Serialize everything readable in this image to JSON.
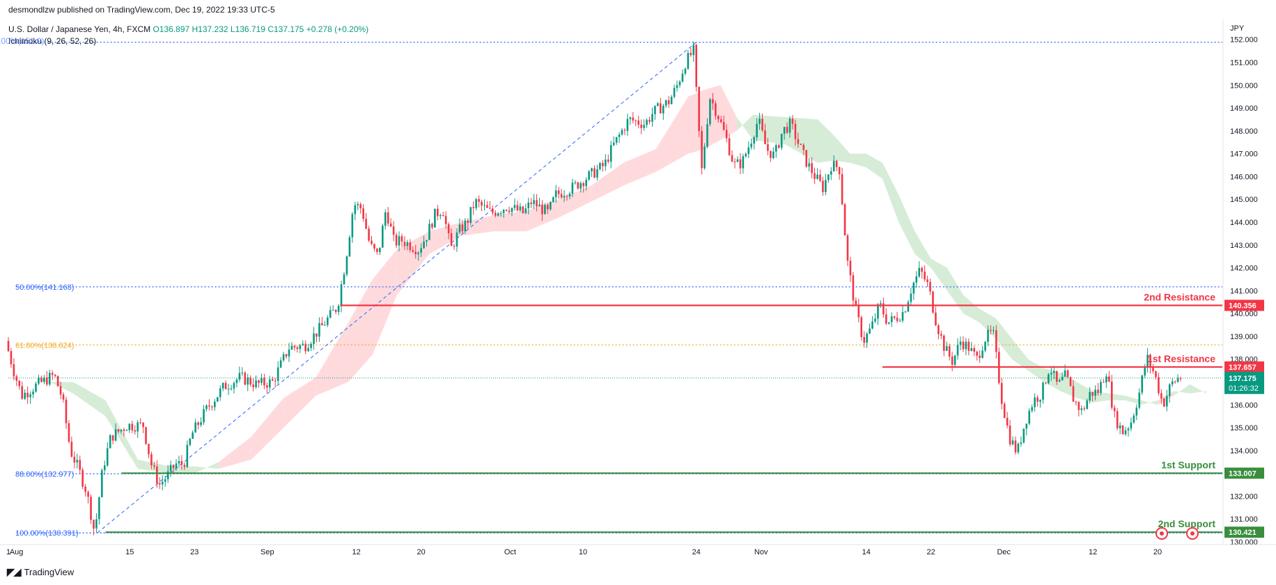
{
  "header": {
    "publish": "desmondlzw published on TradingView.com, Dec 19, 2022 19:33 UTC-5",
    "symbol": "U.S. Dollar / Japanese Yen, 4h, FXCM",
    "open": "O136.897",
    "high": "H137.232",
    "low": "L136.719",
    "close": "C137.175",
    "change": "+0.278 (+0.20%)",
    "indicator": "Ichimoku (9, 26, 52, 26)",
    "fib0": "0.00%(151.9)"
  },
  "brand": {
    "name": "TradingView"
  },
  "colors": {
    "up": "#089981",
    "down": "#f23645",
    "cloud_up": "#c8e6c9",
    "cloud_down": "#ffcdd2",
    "resistance": "#f23645",
    "support": "#388e3c",
    "fib_blue": "#2962ff",
    "fib_orange": "#f5a623"
  },
  "chart_data": {
    "type": "candlestick",
    "symbol": "USDJPY",
    "timeframe": "4h",
    "currency_label": "JPY",
    "ylim": [
      130.0,
      152.3
    ],
    "y_ticks": [
      "152.000",
      "151.000",
      "150.000",
      "149.000",
      "148.000",
      "147.000",
      "146.000",
      "145.000",
      "144.000",
      "143.000",
      "142.000",
      "141.000",
      "140.000",
      "139.000",
      "138.000",
      "137.000",
      "136.000",
      "135.000",
      "134.000",
      "133.000",
      "132.000",
      "131.000",
      "130.000"
    ],
    "x_ticks": [
      {
        "label": "1",
        "day": 0
      },
      {
        "label": "Aug",
        "day": 1
      },
      {
        "label": "15",
        "day": 15
      },
      {
        "label": "23",
        "day": 23
      },
      {
        "label": "Sep",
        "day": 32
      },
      {
        "label": "12",
        "day": 43
      },
      {
        "label": "20",
        "day": 51
      },
      {
        "label": "Oct",
        "day": 62
      },
      {
        "label": "10",
        "day": 71
      },
      {
        "label": "24",
        "day": 85
      },
      {
        "label": "Nov",
        "day": 93
      },
      {
        "label": "14",
        "day": 106
      },
      {
        "label": "22",
        "day": 114
      },
      {
        "label": "Dec",
        "day": 123
      },
      {
        "label": "12",
        "day": 134
      },
      {
        "label": "20",
        "day": 142
      }
    ],
    "date_range_days": [
      0,
      150
    ],
    "price_path": [
      [
        0,
        138.8
      ],
      [
        1,
        137.5
      ],
      [
        2,
        136.4
      ],
      [
        4,
        136.9
      ],
      [
        6,
        137.3
      ],
      [
        7,
        136.3
      ],
      [
        8,
        134.0
      ],
      [
        9,
        133.2
      ],
      [
        10,
        132.2
      ],
      [
        11,
        130.4
      ],
      [
        12,
        133.2
      ],
      [
        13,
        134.6
      ],
      [
        15,
        135.1
      ],
      [
        17,
        135.1
      ],
      [
        18,
        133.4
      ],
      [
        19,
        132.5
      ],
      [
        20,
        132.9
      ],
      [
        21,
        133.4
      ],
      [
        22,
        133.4
      ],
      [
        23,
        134.7
      ],
      [
        25,
        135.9
      ],
      [
        27,
        136.8
      ],
      [
        29,
        137.2
      ],
      [
        31,
        136.9
      ],
      [
        33,
        137.0
      ],
      [
        35,
        138.5
      ],
      [
        37,
        138.6
      ],
      [
        39,
        139.4
      ],
      [
        41,
        140.3
      ],
      [
        42,
        142.3
      ],
      [
        43,
        144.8
      ],
      [
        44,
        144.6
      ],
      [
        45,
        143.0
      ],
      [
        46,
        142.5
      ],
      [
        47,
        144.6
      ],
      [
        48,
        143.1
      ],
      [
        49,
        143.2
      ],
      [
        50,
        143.0
      ],
      [
        51,
        142.8
      ],
      [
        52,
        143.4
      ],
      [
        53,
        144.3
      ],
      [
        54,
        144.6
      ],
      [
        55,
        142.8
      ],
      [
        56,
        143.6
      ],
      [
        57,
        144.0
      ],
      [
        58,
        144.9
      ],
      [
        60,
        144.4
      ],
      [
        62,
        144.7
      ],
      [
        64,
        144.4
      ],
      [
        65,
        144.9
      ],
      [
        67,
        144.4
      ],
      [
        68,
        145.2
      ],
      [
        70,
        145.5
      ],
      [
        72,
        146.0
      ],
      [
        74,
        146.5
      ],
      [
        75,
        147.3
      ],
      [
        77,
        148.5
      ],
      [
        79,
        148.3
      ],
      [
        80,
        148.8
      ],
      [
        82,
        149.3
      ],
      [
        83,
        150.0
      ],
      [
        84,
        151.0
      ],
      [
        85,
        151.5
      ],
      [
        86,
        146.2
      ],
      [
        87,
        149.5
      ],
      [
        88,
        148.7
      ],
      [
        89,
        147.7
      ],
      [
        90,
        146.5
      ],
      [
        91,
        146.6
      ],
      [
        92,
        147.5
      ],
      [
        93,
        148.5
      ],
      [
        94,
        147.2
      ],
      [
        95,
        146.9
      ],
      [
        96,
        148.0
      ],
      [
        97,
        148.3
      ],
      [
        98,
        147.4
      ],
      [
        99,
        146.6
      ],
      [
        100,
        146.0
      ],
      [
        101,
        145.5
      ],
      [
        102,
        146.5
      ],
      [
        103,
        146.4
      ],
      [
        104,
        142.3
      ],
      [
        105,
        140.2
      ],
      [
        106,
        138.8
      ],
      [
        107,
        139.4
      ],
      [
        108,
        140.4
      ],
      [
        109,
        139.6
      ],
      [
        110,
        139.8
      ],
      [
        111,
        140.1
      ],
      [
        112,
        141.2
      ],
      [
        113,
        141.9
      ],
      [
        114,
        141.2
      ],
      [
        115,
        139.6
      ],
      [
        116,
        138.5
      ],
      [
        117,
        137.9
      ],
      [
        118,
        138.8
      ],
      [
        119,
        138.5
      ],
      [
        120,
        138.0
      ],
      [
        121,
        138.9
      ],
      [
        122,
        139.2
      ],
      [
        123,
        136.4
      ],
      [
        124,
        134.6
      ],
      [
        125,
        133.9
      ],
      [
        126,
        135.3
      ],
      [
        127,
        136.2
      ],
      [
        128,
        136.5
      ],
      [
        129,
        137.7
      ],
      [
        130,
        136.8
      ],
      [
        131,
        137.3
      ],
      [
        132,
        136.2
      ],
      [
        133,
        135.7
      ],
      [
        134,
        136.5
      ],
      [
        135,
        136.6
      ],
      [
        136,
        137.5
      ],
      [
        137,
        135.5
      ],
      [
        138,
        134.8
      ],
      [
        139,
        135.2
      ],
      [
        140,
        136.4
      ],
      [
        141,
        138.1
      ],
      [
        142,
        137.3
      ],
      [
        143,
        136.0
      ],
      [
        144,
        136.9
      ],
      [
        145,
        137.2
      ]
    ],
    "cloud": [
      [
        4,
        137.0,
        137.2
      ],
      [
        8,
        137.0,
        136.5
      ],
      [
        12,
        136.2,
        135.5
      ],
      [
        16,
        133.6,
        133.2
      ],
      [
        20,
        133.3,
        133.0
      ],
      [
        23,
        133.3,
        133.0
      ],
      [
        26,
        133.2,
        133.5
      ],
      [
        30,
        133.6,
        134.6
      ],
      [
        34,
        135.0,
        136.3
      ],
      [
        38,
        136.4,
        137.2
      ],
      [
        42,
        137.0,
        139.6
      ],
      [
        45,
        138.2,
        141.5
      ],
      [
        48,
        140.8,
        142.8
      ],
      [
        52,
        142.6,
        143.6
      ],
      [
        56,
        143.4,
        144.0
      ],
      [
        60,
        143.6,
        144.3
      ],
      [
        64,
        143.6,
        144.5
      ],
      [
        68,
        144.2,
        145.0
      ],
      [
        72,
        144.9,
        145.6
      ],
      [
        76,
        145.6,
        146.6
      ],
      [
        80,
        146.2,
        147.2
      ],
      [
        84,
        147.0,
        149.5
      ],
      [
        86,
        147.2,
        149.8
      ],
      [
        88,
        147.6,
        150.0
      ],
      [
        90,
        148.0,
        148.6
      ],
      [
        92,
        148.7,
        147.6
      ],
      [
        96,
        148.6,
        147.4
      ],
      [
        100,
        148.5,
        146.6
      ],
      [
        102,
        147.8,
        146.7
      ],
      [
        104,
        147.0,
        146.6
      ],
      [
        106,
        147.0,
        146.4
      ],
      [
        108,
        146.6,
        145.9
      ],
      [
        110,
        145.2,
        144.0
      ],
      [
        112,
        143.6,
        142.6
      ],
      [
        114,
        142.4,
        142.0
      ],
      [
        116,
        142.0,
        141.0
      ],
      [
        118,
        140.8,
        140.0
      ],
      [
        120,
        140.2,
        139.6
      ],
      [
        122,
        139.8,
        138.9
      ],
      [
        124,
        138.9,
        138.0
      ],
      [
        126,
        138.0,
        137.5
      ],
      [
        128,
        137.6,
        137.0
      ],
      [
        130,
        137.4,
        136.6
      ],
      [
        132,
        137.0,
        136.3
      ],
      [
        134,
        136.6,
        136.1
      ],
      [
        136,
        136.5,
        136.2
      ],
      [
        138,
        136.4,
        136.2
      ],
      [
        140,
        136.2,
        136.0
      ],
      [
        142,
        136.0,
        136.2
      ],
      [
        144,
        136.4,
        136.6
      ],
      [
        146,
        136.9,
        136.5
      ],
      [
        148,
        136.5,
        136.6
      ]
    ],
    "levels": [
      {
        "name": "2nd Resistance",
        "price": 140.356,
        "label": "140.356",
        "color": "#f23645",
        "start_day": 41
      },
      {
        "name": "1st Resistance",
        "price": 137.657,
        "label": "137.657",
        "color": "#f23645",
        "start_day": 108
      },
      {
        "name": "1st Support",
        "price": 133.007,
        "label": "133.007",
        "color": "#388e3c",
        "start_day": 14
      },
      {
        "name": "2nd Support",
        "price": 130.421,
        "label": "130.421",
        "color": "#388e3c",
        "start_day": 12
      }
    ],
    "fib_levels": [
      {
        "label": "0.00%(151.9",
        "price": 151.88,
        "color": "#2962ff"
      },
      {
        "label": "50.00%(141.168)",
        "price": 141.168,
        "color": "#2962ff"
      },
      {
        "label": "61.80%(138.624)",
        "price": 138.624,
        "color": "#f5a623"
      },
      {
        "label": "88.00%(132.977)",
        "price": 132.977,
        "color": "#2962ff"
      },
      {
        "label": "100.00%(130.391)",
        "price": 130.391,
        "color": "#2962ff"
      }
    ],
    "fib_trend": [
      [
        11,
        130.391
      ],
      [
        85,
        151.88
      ]
    ],
    "current_price": {
      "label": "137.175",
      "countdown": "01:26:32",
      "price": 137.175
    }
  }
}
